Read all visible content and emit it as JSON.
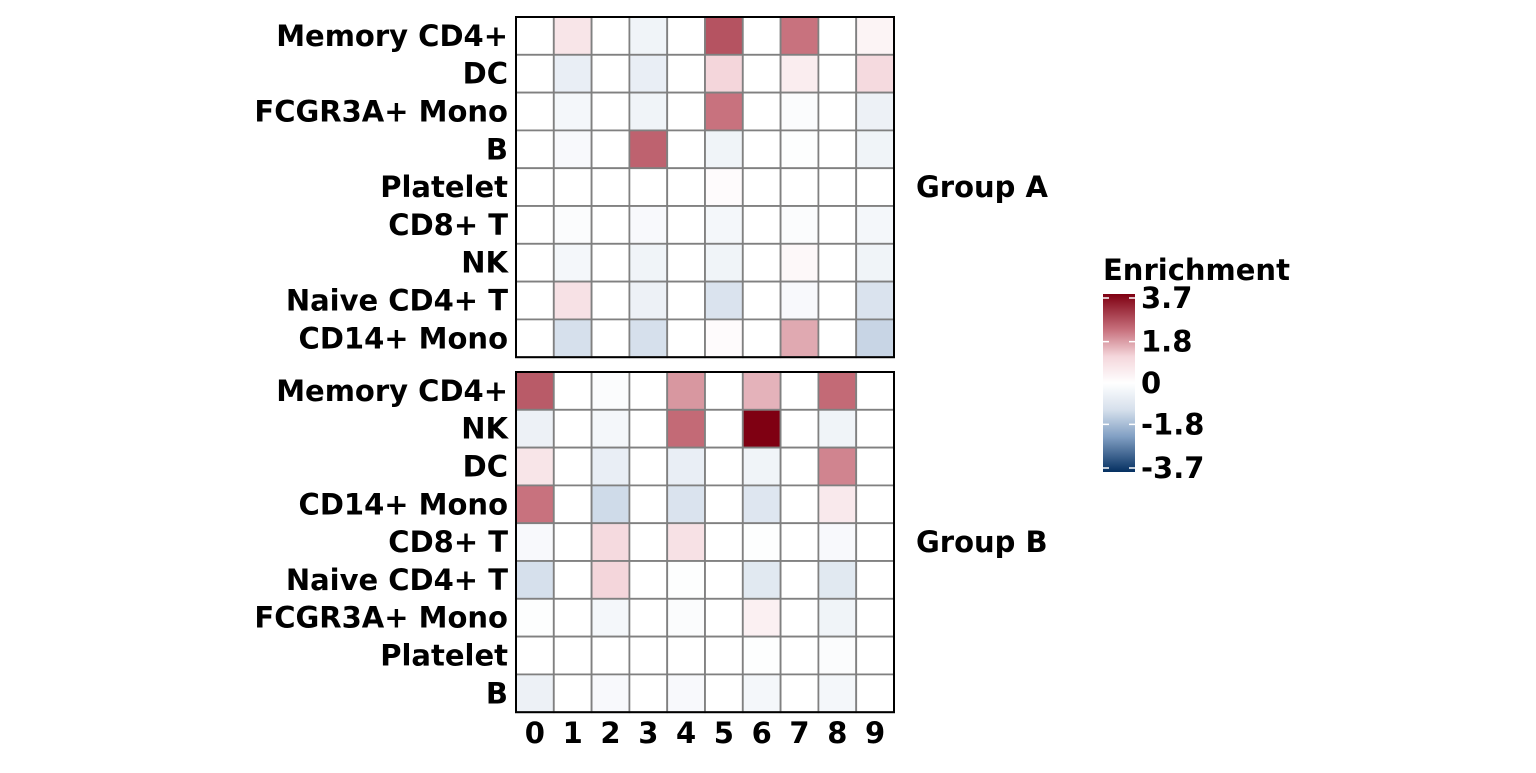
{
  "chart_data": {
    "type": "heatmap",
    "title": "",
    "xlabel": "",
    "ylabel": "",
    "columns": [
      "0",
      "1",
      "2",
      "3",
      "4",
      "5",
      "6",
      "7",
      "8",
      "9"
    ],
    "legend": {
      "title": "Enrichment",
      "ticks": [
        "3.7",
        "1.8",
        "0",
        "-1.8",
        "-3.7"
      ],
      "range": [
        -3.7,
        3.7
      ],
      "colors": {
        "low": "#053061",
        "mid": "#ffffff",
        "high": "#7f0012"
      }
    },
    "groups": [
      {
        "name": "Group A",
        "rows": [
          "Memory CD4+",
          "DC",
          "FCGR3A+ Mono",
          "B",
          "Platelet",
          "CD8+ T",
          "NK",
          "Naive CD4+ T",
          "CD14+ Mono"
        ],
        "values": [
          [
            0,
            0.7,
            0,
            -0.4,
            0,
            2.6,
            0,
            2.2,
            0,
            0.3
          ],
          [
            0,
            -0.6,
            0,
            -0.6,
            0,
            1.1,
            0,
            0.5,
            0,
            1.0
          ],
          [
            0,
            -0.3,
            0,
            -0.4,
            0,
            2.2,
            0,
            -0.1,
            0,
            -0.5
          ],
          [
            0,
            -0.2,
            0,
            2.4,
            0,
            -0.4,
            0,
            -0.05,
            0,
            -0.4
          ],
          [
            0,
            0,
            0,
            0,
            0,
            0.1,
            0,
            0,
            0,
            0
          ],
          [
            0,
            -0.1,
            0,
            -0.2,
            0,
            -0.3,
            0,
            -0.1,
            0,
            -0.3
          ],
          [
            0,
            -0.3,
            0,
            -0.4,
            0,
            -0.4,
            0,
            0.2,
            0,
            -0.4
          ],
          [
            0,
            0.8,
            0,
            -0.5,
            0,
            -1.0,
            0,
            -0.2,
            0,
            -1.0
          ],
          [
            0,
            -1.1,
            0,
            -1.1,
            0,
            0.1,
            0,
            1.6,
            0,
            -1.3
          ]
        ]
      },
      {
        "name": "Group B",
        "rows": [
          "Memory CD4+",
          "NK",
          "DC",
          "CD14+ Mono",
          "CD8+ T",
          "Naive CD4+ T",
          "FCGR3A+ Mono",
          "Platelet",
          "B"
        ],
        "values": [
          [
            2.5,
            0,
            -0.1,
            0,
            1.8,
            0,
            1.5,
            0,
            2.3,
            0
          ],
          [
            -0.5,
            0,
            -0.3,
            0,
            2.3,
            0,
            3.7,
            0,
            -0.4,
            0
          ],
          [
            0.7,
            0,
            -0.6,
            0,
            -0.6,
            0,
            -0.4,
            0,
            2.0,
            0
          ],
          [
            2.2,
            0,
            -1.2,
            0,
            -1.0,
            0,
            -0.9,
            0,
            0.6,
            0
          ],
          [
            -0.2,
            0,
            1.0,
            0,
            0.8,
            0,
            -0.05,
            0,
            -0.2,
            0
          ],
          [
            -1.1,
            0,
            1.1,
            0,
            -0.05,
            0,
            -0.8,
            0,
            -0.8,
            0
          ],
          [
            -0.05,
            0,
            -0.3,
            0,
            -0.1,
            0,
            0.4,
            0,
            -0.4,
            0
          ],
          [
            0,
            0,
            0,
            0,
            0,
            0,
            -0.05,
            0,
            -0.1,
            0
          ],
          [
            -0.5,
            0,
            -0.2,
            0,
            -0.2,
            0,
            -0.3,
            0,
            -0.3,
            0
          ]
        ]
      }
    ]
  }
}
